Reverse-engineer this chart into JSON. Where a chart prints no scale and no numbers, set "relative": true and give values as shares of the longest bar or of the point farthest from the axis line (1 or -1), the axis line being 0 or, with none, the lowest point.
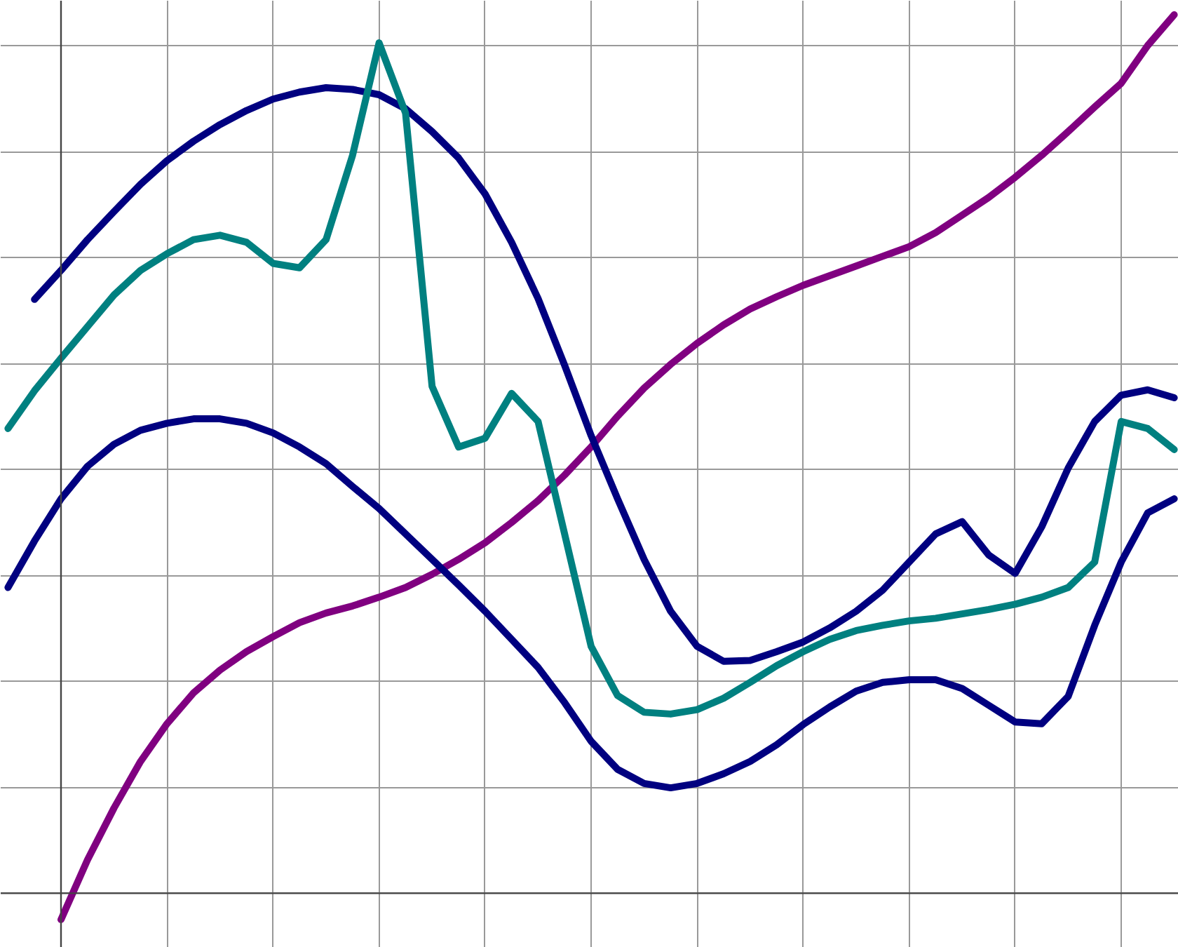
{
  "chart_data": {
    "type": "line",
    "relative": true,
    "grid": true,
    "tick_labels": false,
    "line_style": "solid",
    "categories": [
      null,
      null,
      null,
      null,
      null,
      null,
      null,
      null,
      null,
      null,
      null,
      null,
      null,
      null,
      null,
      null,
      null,
      null,
      null,
      null,
      null,
      null,
      null,
      null,
      null,
      null,
      null,
      null,
      null,
      null,
      null,
      null,
      null,
      null,
      null,
      null,
      null,
      null,
      null,
      null,
      null,
      null,
      null,
      null,
      null
    ],
    "series": [
      {
        "color": "#800080",
        "values": [
          null,
          null,
          -0.03,
          0.038,
          0.097,
          0.15,
          0.193,
          0.228,
          0.254,
          0.275,
          0.292,
          0.308,
          0.319,
          0.327,
          0.337,
          0.348,
          0.363,
          0.38,
          0.399,
          0.422,
          0.447,
          0.476,
          0.508,
          0.543,
          0.575,
          0.602,
          0.626,
          0.647,
          0.665,
          0.679,
          0.692,
          0.703,
          0.714,
          0.725,
          0.736,
          0.752,
          0.772,
          0.792,
          0.815,
          0.84,
          0.867,
          0.895,
          0.922,
          0.965,
          1.0
        ]
      },
      {
        "color": "#000080",
        "values": [
          null,
          0.676,
          0.709,
          0.744,
          0.776,
          0.807,
          0.834,
          0.856,
          0.875,
          0.891,
          0.904,
          0.912,
          0.917,
          0.915,
          0.909,
          0.893,
          0.867,
          0.837,
          0.796,
          0.741,
          0.677,
          0.601,
          0.521,
          0.449,
          0.38,
          0.321,
          0.281,
          0.264,
          0.265,
          0.275,
          0.286,
          0.302,
          0.321,
          0.345,
          0.377,
          0.409,
          0.423,
          0.385,
          0.364,
          0.417,
          0.484,
          0.537,
          0.567,
          0.573,
          0.564
        ]
      },
      {
        "color": "#008080",
        "values": [
          0.529,
          0.572,
          0.609,
          0.645,
          0.681,
          0.709,
          0.728,
          0.744,
          0.749,
          0.741,
          0.717,
          0.712,
          0.744,
          0.84,
          0.968,
          0.888,
          0.577,
          0.508,
          0.518,
          0.569,
          0.537,
          0.409,
          0.281,
          0.225,
          0.206,
          0.204,
          0.209,
          0.222,
          0.24,
          0.259,
          0.275,
          0.289,
          0.299,
          0.305,
          0.31,
          0.313,
          0.318,
          0.323,
          0.329,
          0.337,
          0.348,
          0.377,
          0.537,
          0.529,
          0.505
        ]
      },
      {
        "color": "#000080",
        "values": [
          0.348,
          0.401,
          0.449,
          0.486,
          0.511,
          0.527,
          0.535,
          0.54,
          0.54,
          0.535,
          0.524,
          0.508,
          0.489,
          0.463,
          0.438,
          0.409,
          0.38,
          0.351,
          0.321,
          0.289,
          0.257,
          0.217,
          0.173,
          0.141,
          0.125,
          0.12,
          0.125,
          0.136,
          0.15,
          0.169,
          0.192,
          0.212,
          0.23,
          0.24,
          0.243,
          0.243,
          0.233,
          0.214,
          0.195,
          0.193,
          0.224,
          0.305,
          0.377,
          0.433,
          0.449
        ]
      }
    ]
  }
}
